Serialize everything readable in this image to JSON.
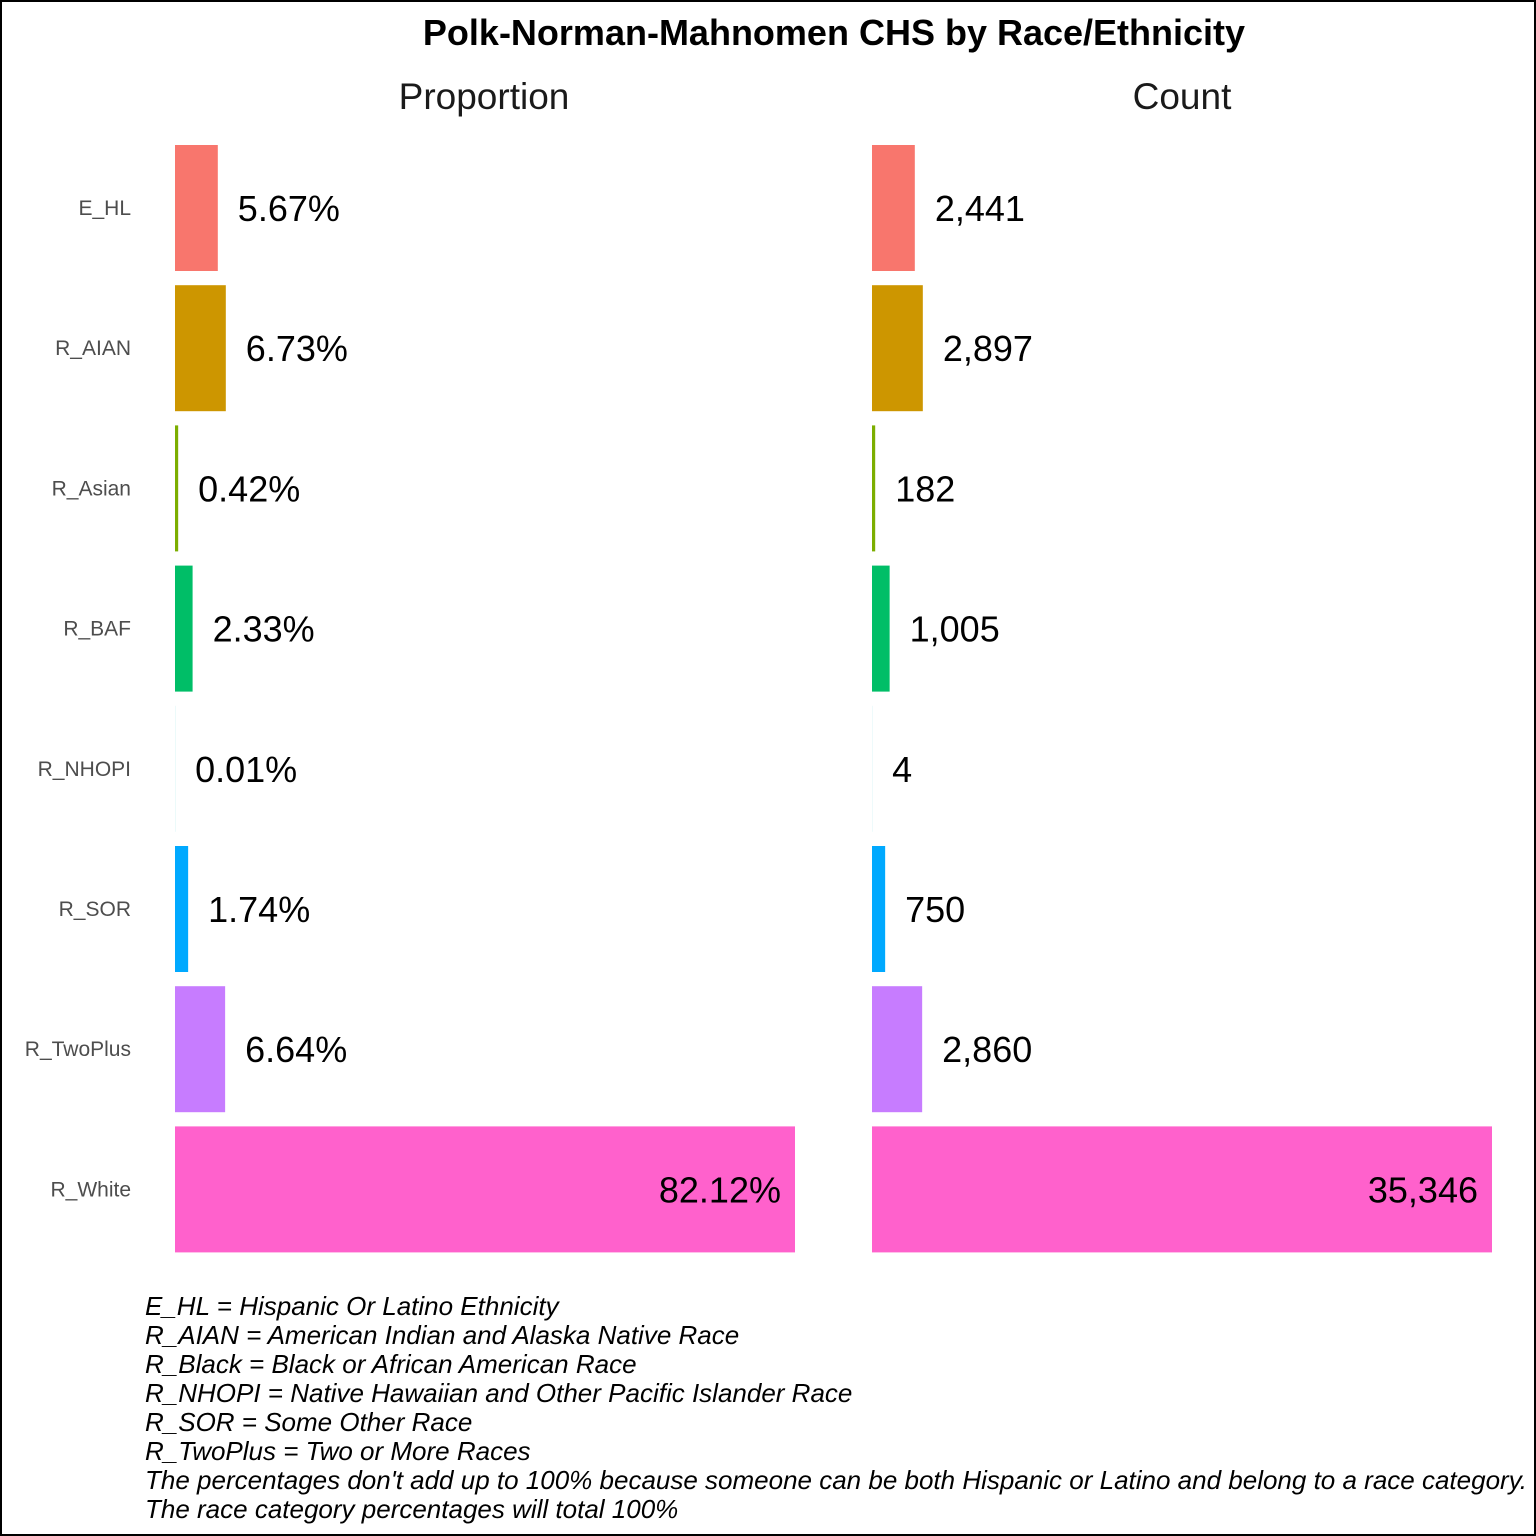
{
  "chart_data": {
    "type": "bar",
    "orientation": "horizontal",
    "title": "Polk-Norman-Mahnomen CHS by Race/Ethnicity",
    "categories": [
      "E_HL",
      "R_AIAN",
      "R_Asian",
      "R_BAF",
      "R_NHOPI",
      "R_SOR",
      "R_TwoPlus",
      "R_White"
    ],
    "colors": [
      "#F8766D",
      "#CD9600",
      "#7CAE00",
      "#00BE67",
      "#00BFC4",
      "#00A9FF",
      "#C77CFF",
      "#FF61CC"
    ],
    "panels": [
      {
        "title": "Proportion",
        "values": [
          5.67,
          6.73,
          0.42,
          2.33,
          0.01,
          1.74,
          6.64,
          82.12
        ],
        "labels": [
          "5.67%",
          "6.73%",
          "0.42%",
          "2.33%",
          "0.01%",
          "1.74%",
          "6.64%",
          "82.12%"
        ]
      },
      {
        "title": "Count",
        "values": [
          2441,
          2897,
          182,
          1005,
          4,
          750,
          2860,
          35346
        ],
        "labels": [
          "2,441",
          "2,897",
          "182",
          "1,005",
          "4",
          "750",
          "2,860",
          "35,346"
        ]
      }
    ],
    "grid": false,
    "legend": "none"
  },
  "footnotes": [
    "E_HL = Hispanic Or Latino Ethnicity",
    "R_AIAN = American Indian and Alaska Native Race",
    "R_Black = Black or African American Race",
    "R_NHOPI = Native Hawaiian and Other Pacific Islander Race",
    "R_SOR = Some Other Race",
    "R_TwoPlus = Two or More Races",
    "The percentages don't add up to 100% because someone can be both Hispanic or Latino and belong to a race category.",
    "The race category percentages will total 100%"
  ]
}
